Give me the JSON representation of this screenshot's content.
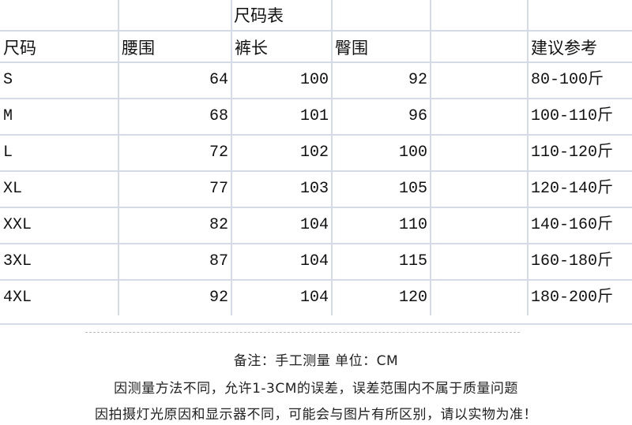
{
  "title": "尺码表",
  "headers": [
    "尺码",
    "腰围",
    "裤长",
    "臀围",
    "",
    "建议参考"
  ],
  "rows": [
    {
      "size": "S",
      "waist": "64",
      "length": "100",
      "hip": "92",
      "weight": "80-100斤"
    },
    {
      "size": "M",
      "waist": "68",
      "length": "101",
      "hip": "96",
      "weight": "100-110斤"
    },
    {
      "size": "L",
      "waist": "72",
      "length": "102",
      "hip": "100",
      "weight": "110-120斤"
    },
    {
      "size": "XL",
      "waist": "77",
      "length": "103",
      "hip": "105",
      "weight": "120-140斤"
    },
    {
      "size": "XXL",
      "waist": "82",
      "length": "104",
      "hip": "110",
      "weight": "140-160斤"
    },
    {
      "size": "3XL",
      "waist": "87",
      "length": "104",
      "hip": "115",
      "weight": "160-180斤"
    },
    {
      "size": "4XL",
      "waist": "92",
      "length": "104",
      "hip": "120",
      "weight": "180-200斤"
    }
  ],
  "notes": [
    "备注：手工测量  单位：CM",
    "因测量方法不同，允许1-3CM的误差，误差范围内不属于质量问题",
    "因拍摄灯光原因和显示器不同，可能会与图片有所区别，请以实物为准！"
  ],
  "grid_color": "#d4dbe6"
}
